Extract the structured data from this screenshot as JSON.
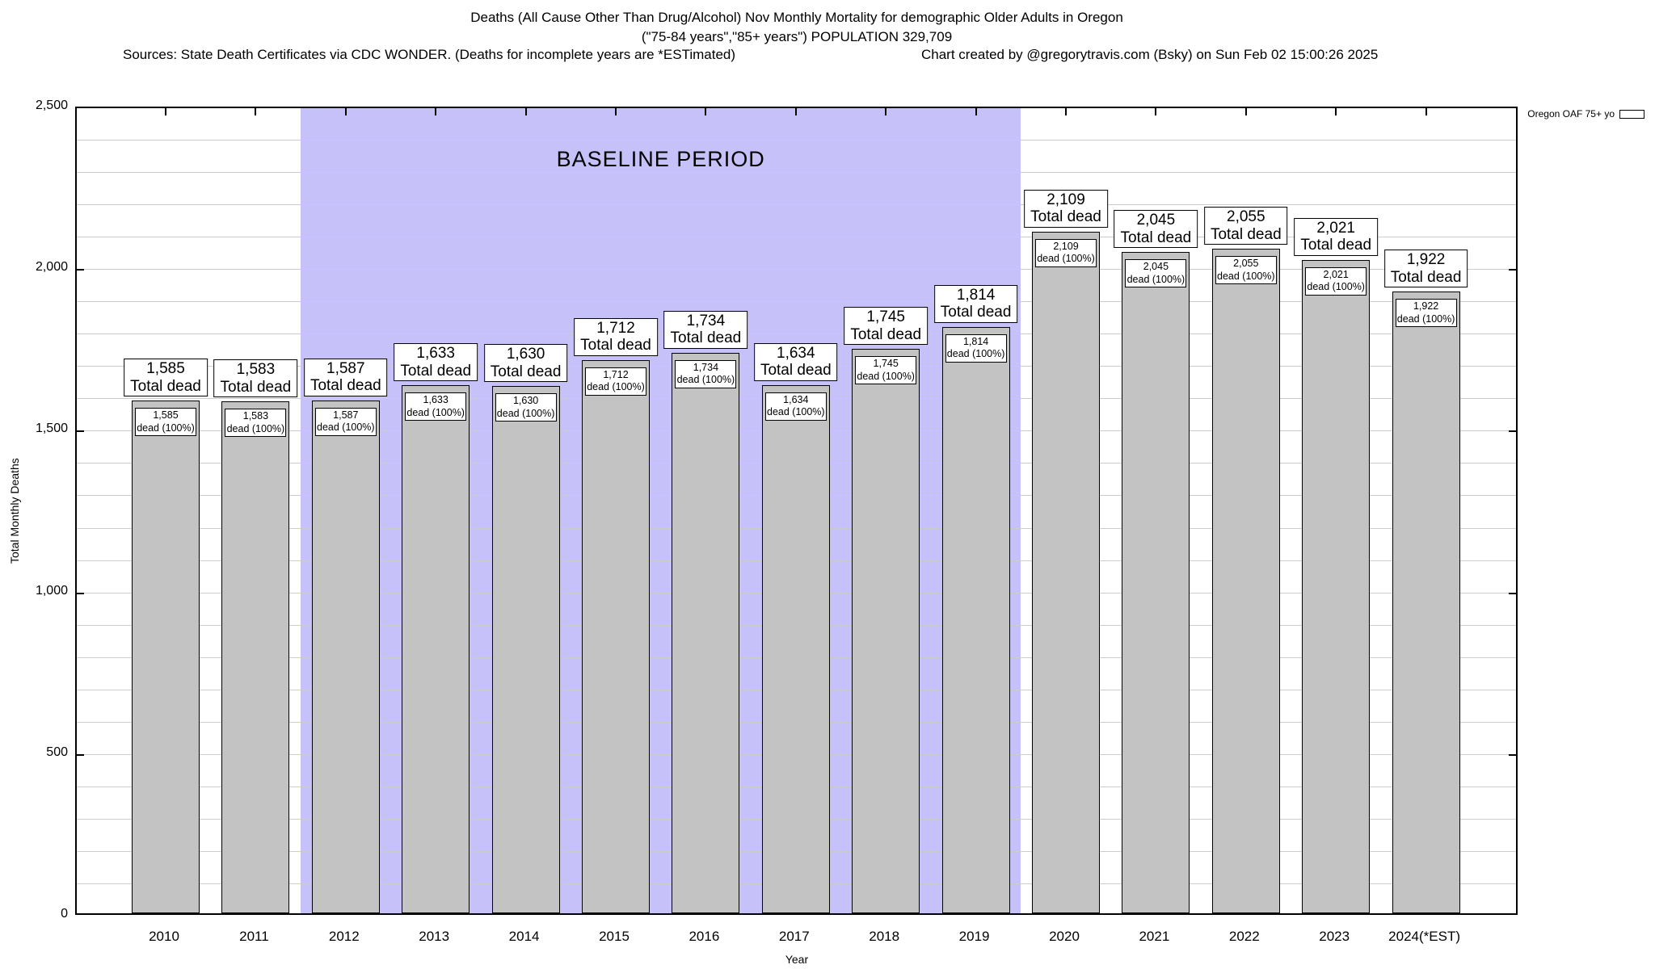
{
  "header": {
    "title_line1": "Deaths (All Cause Other Than Drug/Alcohol) Nov Monthly Mortality for demographic Older Adults in Oregon",
    "title_line2": "(\"75-84 years\",\"85+ years\") POPULATION 329,709",
    "sources": "Sources: State Death Certificates via CDC WONDER. (Deaths for incomplete years are *ESTimated)",
    "credit": "Chart created by @gregorytravis.com (Bsky) on Sun Feb 02 15:00:26 2025"
  },
  "legend": {
    "label": "Oregon OAF 75+ yo",
    "swatch_color": "#c3c3c3"
  },
  "axes": {
    "ylabel": "Total Monthly Deaths",
    "xlabel": "Year",
    "yticks": [
      {
        "value": 0,
        "label": "0"
      },
      {
        "value": 500,
        "label": "500"
      },
      {
        "value": 1000,
        "label": "1,000"
      },
      {
        "value": 1500,
        "label": "1,500"
      },
      {
        "value": 2000,
        "label": "2,000"
      },
      {
        "value": 2500,
        "label": "2,500"
      }
    ]
  },
  "chart_data": {
    "type": "bar",
    "title": "Deaths (All Cause Other Than Drug/Alcohol) Nov Monthly Mortality for demographic Older Adults in Oregon",
    "categories": [
      "2010",
      "2011",
      "2012",
      "2013",
      "2014",
      "2015",
      "2016",
      "2017",
      "2018",
      "2019",
      "2020",
      "2021",
      "2022",
      "2023",
      "2024(*EST)"
    ],
    "values": [
      1585,
      1583,
      1587,
      1633,
      1630,
      1712,
      1734,
      1634,
      1745,
      1814,
      2109,
      2045,
      2055,
      2021,
      1922
    ],
    "series_name": "Oregon OAF 75+ yo",
    "bar_top_label_suffix": "Total dead",
    "bar_inner_label_suffix": "dead (100%)",
    "xlabel": "Year",
    "ylabel": "Total Monthly Deaths",
    "ylim": [
      0,
      2500
    ],
    "grid": true,
    "grid_minor_step": 100,
    "legend_position": "top-right-outside",
    "baseline_annotation": {
      "label": "BASELINE PERIOD",
      "start_category": "2012",
      "end_category": "2019"
    }
  },
  "colors": {
    "bar_fill": "#c3c3c3",
    "bar_border": "#000000",
    "baseline_fill": "#c6c2f9",
    "gridline": "#cccccc",
    "background": "#ffffff"
  }
}
